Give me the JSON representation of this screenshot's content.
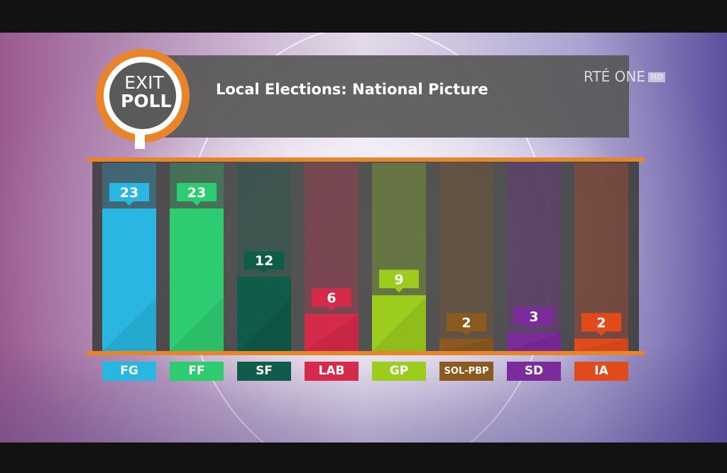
{
  "header": {
    "logo_line1": "EXIT",
    "logo_line2": "POLL",
    "title": "Local Elections: National Picture",
    "channel": "RTÉ ONE",
    "channel_badge": "HD"
  },
  "colors": {
    "accent": "#e8842a",
    "panel": "#3c3c3c"
  },
  "chart_data": {
    "type": "bar",
    "title": "Local Elections: National Picture",
    "categories": [
      "FG",
      "FF",
      "SF",
      "LAB",
      "GP",
      "SOL-PBP",
      "SD",
      "IA"
    ],
    "values": [
      23,
      23,
      12,
      6,
      9,
      2,
      3,
      2
    ],
    "colors": [
      "#29b6e0",
      "#2ecc71",
      "#0f5c4a",
      "#d62a4a",
      "#9ccc1e",
      "#8a5a20",
      "#7b2b9a",
      "#e24a1c"
    ],
    "ylim": [
      0,
      23
    ],
    "data_labels": true,
    "grid": false,
    "legend": "none",
    "xlabel": "",
    "ylabel": ""
  }
}
